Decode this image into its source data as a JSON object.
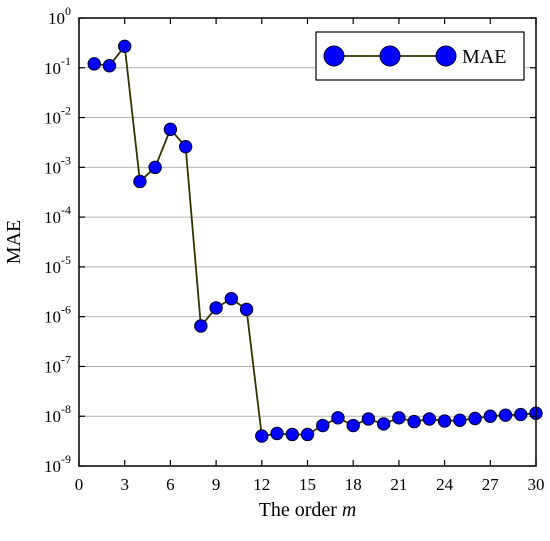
{
  "chart_data": {
    "type": "line",
    "title": "",
    "xlabel": "The order ",
    "xlabel_italic": "m",
    "ylabel": "MAE",
    "y_scale": "log",
    "xlim": [
      0,
      30
    ],
    "ylim": [
      1e-09,
      1
    ],
    "x_ticks": [
      0,
      3,
      6,
      9,
      12,
      15,
      18,
      21,
      24,
      27,
      30
    ],
    "y_ticks": [
      {
        "base": "10",
        "exp": "0"
      },
      {
        "base": "10",
        "exp": "-1"
      },
      {
        "base": "10",
        "exp": "-2"
      },
      {
        "base": "10",
        "exp": "-3"
      },
      {
        "base": "10",
        "exp": "-4"
      },
      {
        "base": "10",
        "exp": "-5"
      },
      {
        "base": "10",
        "exp": "-6"
      },
      {
        "base": "10",
        "exp": "-7"
      },
      {
        "base": "10",
        "exp": "-8"
      },
      {
        "base": "10",
        "exp": "-9"
      }
    ],
    "grid": "horizontal",
    "legend_position": "top-right",
    "line_color": "#333300",
    "marker_color": "#0000ff",
    "series": [
      {
        "name": "MAE",
        "x": [
          1,
          2,
          3,
          4,
          5,
          6,
          7,
          8,
          9,
          10,
          11,
          12,
          13,
          14,
          15,
          16,
          17,
          18,
          19,
          20,
          21,
          22,
          23,
          24,
          25,
          26,
          27,
          28,
          29,
          30
        ],
        "y": [
          0.12,
          0.11,
          0.27,
          0.00052,
          0.001,
          0.0058,
          0.0026,
          6.5e-07,
          1.5e-06,
          2.3e-06,
          1.4e-06,
          4e-09,
          4.5e-09,
          4.3e-09,
          4.3e-09,
          6.5e-09,
          9.3e-09,
          6.5e-09,
          8.8e-09,
          7e-09,
          9.3e-09,
          7.8e-09,
          8.8e-09,
          8e-09,
          8.3e-09,
          9e-09,
          1e-08,
          1.05e-08,
          1.08e-08,
          1.15e-08
        ]
      }
    ]
  }
}
